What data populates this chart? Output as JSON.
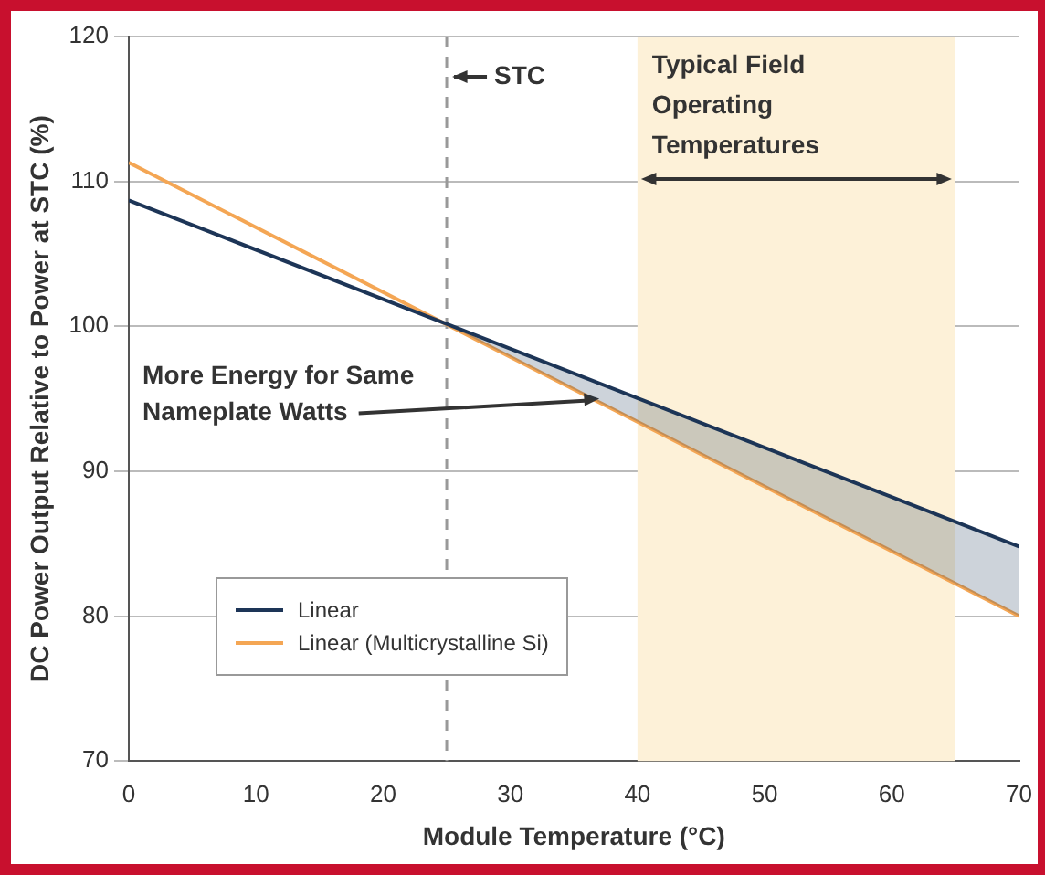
{
  "chart_data": {
    "type": "line",
    "xlabel": "Module Temperature (°C)",
    "ylabel": "DC Power Output Relative to Power at STC (%)",
    "x": [
      0,
      70
    ],
    "series": [
      {
        "name": "Linear",
        "color": "#1d3557",
        "values": [
          108.7,
          84.8
        ]
      },
      {
        "name": "Linear (Multicrystalline Si)",
        "color": "#f4a654",
        "values": [
          111.3,
          80
        ]
      }
    ],
    "xlim": [
      0,
      70
    ],
    "xticks": [
      0,
      10,
      20,
      30,
      40,
      50,
      60,
      70
    ],
    "ylim": [
      70,
      120
    ],
    "yticks": [
      70,
      80,
      90,
      100,
      110,
      120
    ],
    "grid": "y",
    "legend": "bottom left",
    "marker": "none",
    "line_style": "solid",
    "ref_lines": [
      {
        "axis": "x",
        "value": 25,
        "label": "STC",
        "color": "#999999",
        "line_style": "dashed"
      }
    ],
    "bands": [
      {
        "axis": "x",
        "from": 40,
        "to": 65,
        "label": "Typical Field Operating Temperatures",
        "color": "#fdf1d8"
      }
    ],
    "annotations": [
      {
        "text": "More Energy for Same Nameplate Watts",
        "x": 37,
        "y": 95
      }
    ]
  }
}
